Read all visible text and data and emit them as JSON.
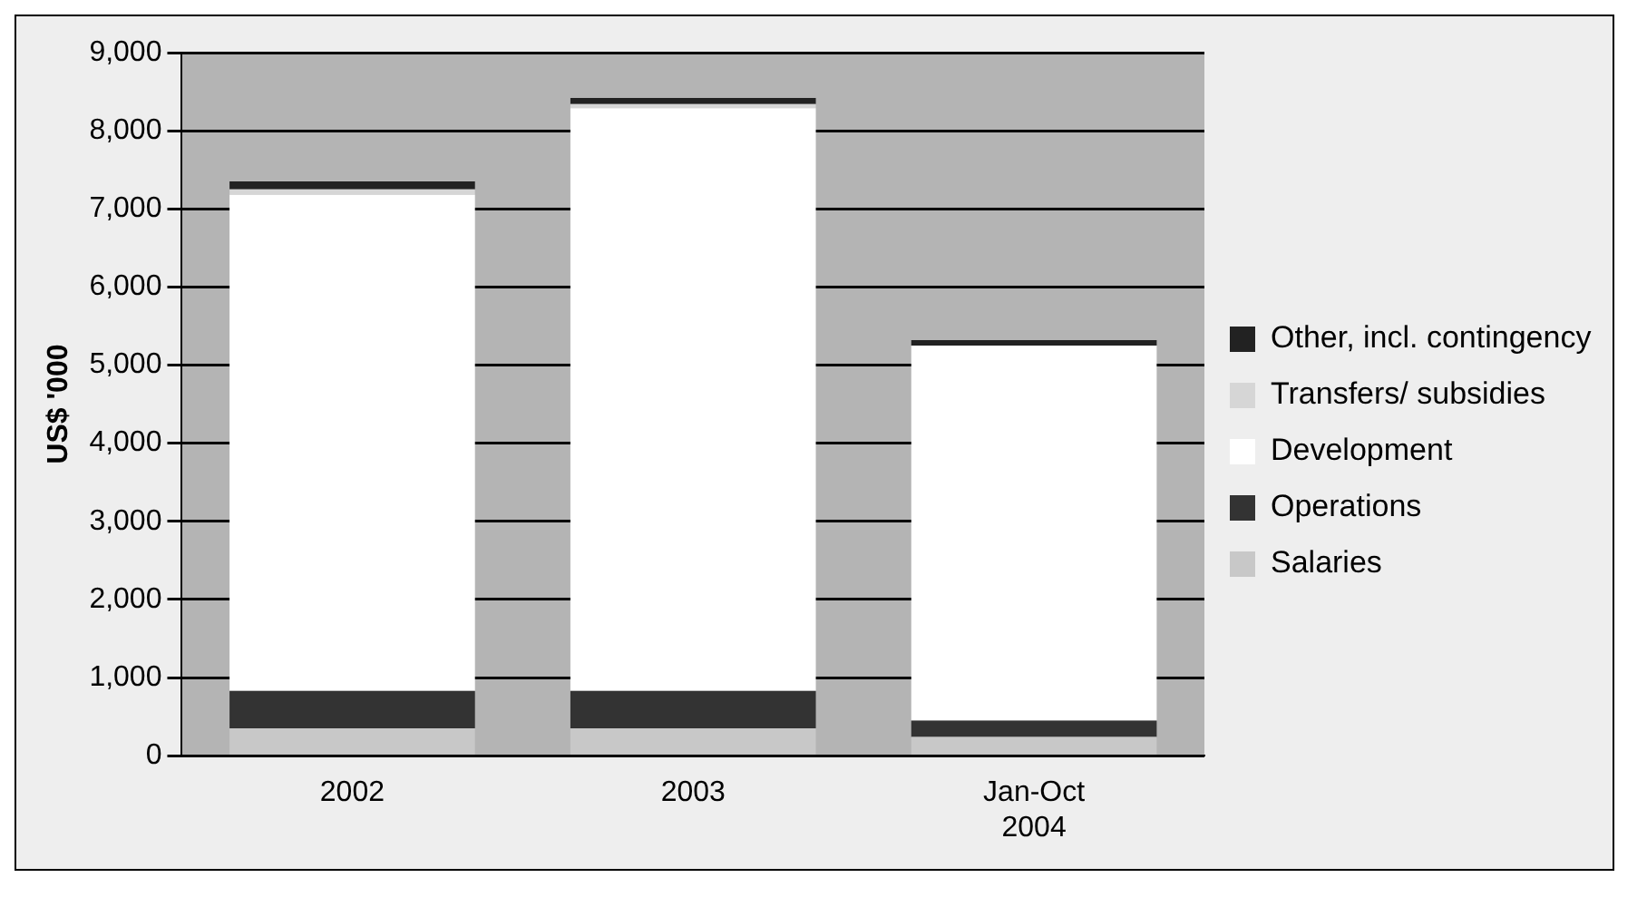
{
  "chart_data": {
    "type": "bar",
    "stacked": true,
    "ylabel": "US$ '000",
    "categories": [
      "2002",
      "2003",
      "Jan-Oct 2004"
    ],
    "series": [
      {
        "name": "Salaries",
        "color": "#c8c8c8",
        "values": [
          350,
          350,
          240
        ]
      },
      {
        "name": "Operations",
        "color": "#333333",
        "values": [
          480,
          480,
          210
        ]
      },
      {
        "name": "Development",
        "color": "#ffffff",
        "values": [
          6350,
          7460,
          4800
        ]
      },
      {
        "name": "Transfers/ subsidies",
        "color": "#d6d6d6",
        "values": [
          70,
          50,
          null
        ]
      },
      {
        "name": "Other, incl. contingency",
        "color": "#222222",
        "values": [
          100,
          80,
          70
        ]
      }
    ],
    "ylim": [
      0,
      9000
    ],
    "yticks": [
      0,
      {
        "value": 1000,
        "label": "1,000"
      },
      {
        "value": 2000,
        "label": "2,000"
      },
      {
        "value": 3000,
        "label": "3,000"
      },
      {
        "value": 4000,
        "label": "4,000"
      },
      {
        "value": 5000,
        "label": "5,000"
      },
      {
        "value": 6000,
        "label": "6,000"
      },
      {
        "value": 7000,
        "label": "7,000"
      },
      {
        "value": 8000,
        "label": "8,000"
      },
      {
        "value": 9000,
        "label": "9,000"
      }
    ],
    "grid": "y",
    "legend": "right"
  }
}
